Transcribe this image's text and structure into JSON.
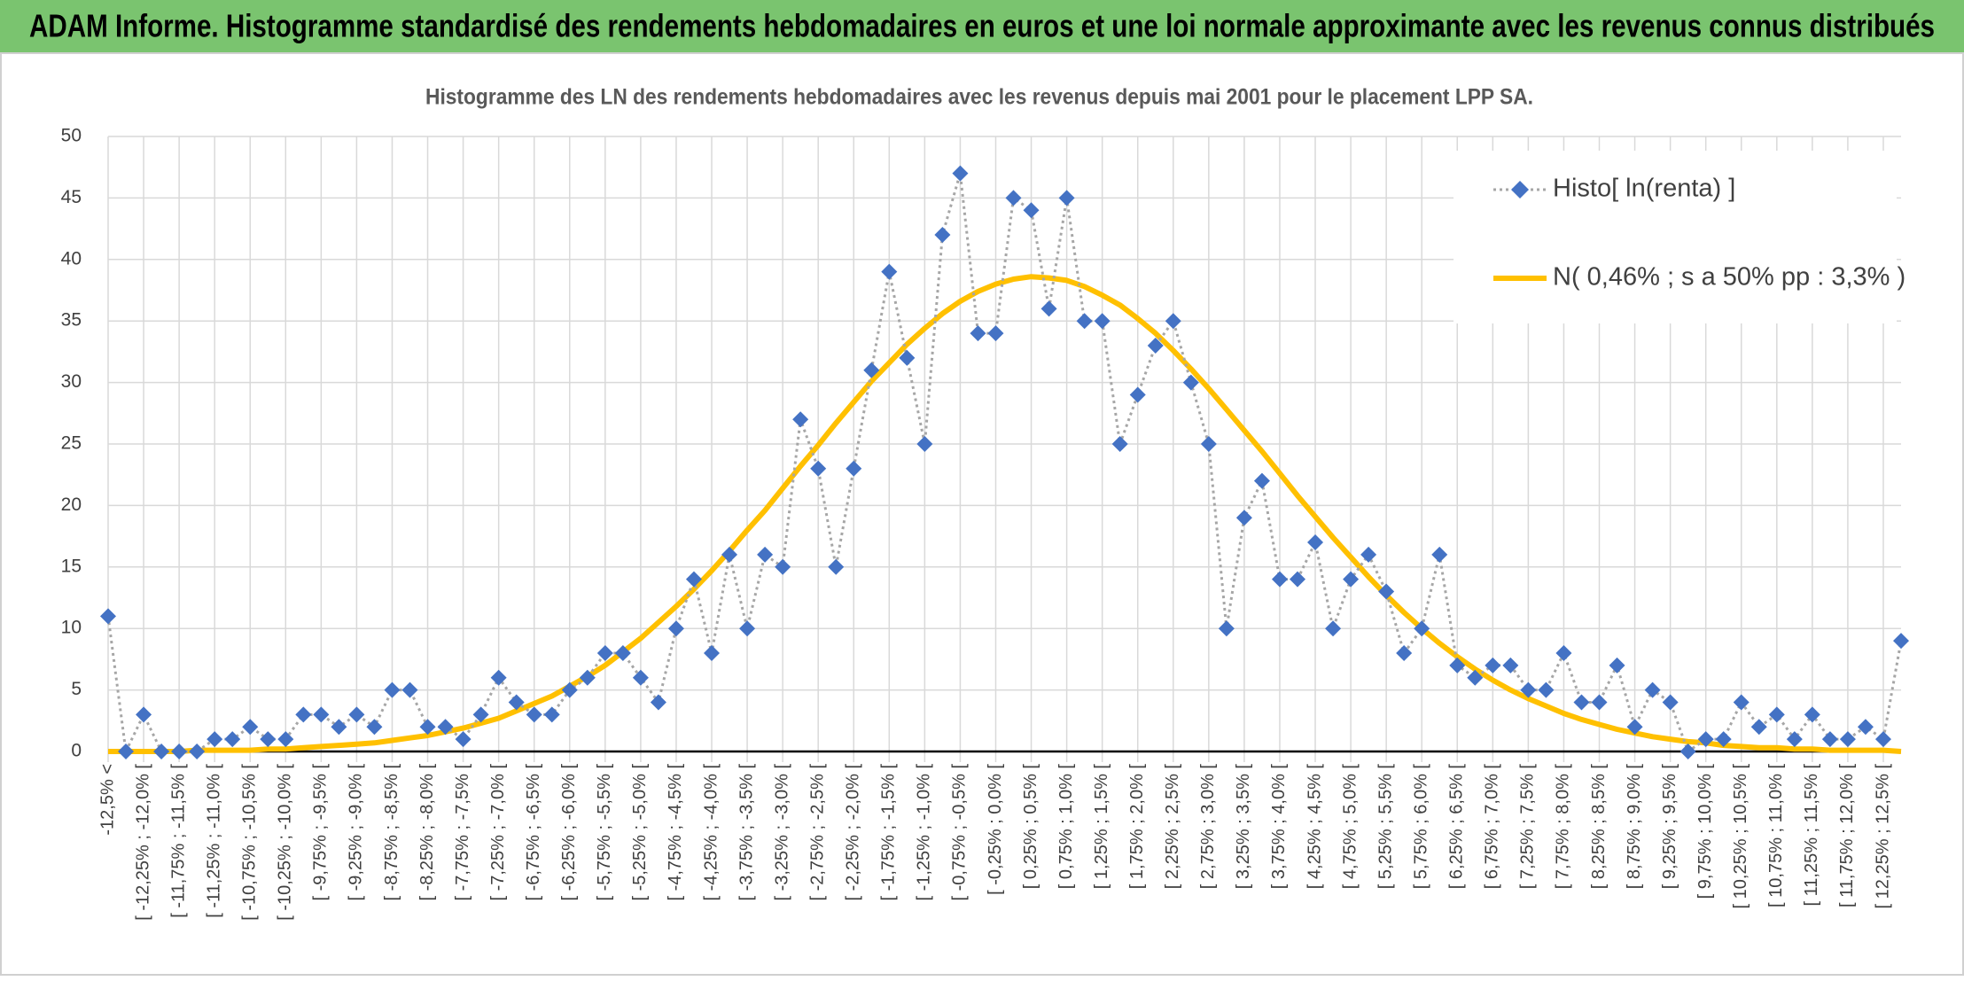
{
  "chart_data": {
    "type": "line",
    "title": "ADAM Informe. Histogramme standardisé des rendements hebdomadaires en euros et une loi normale approximante avec les revenus connus distribués",
    "subtitle": "Histogramme des LN des rendements hebdomadaires avec les revenus depuis mai 2001 pour le placement LPP SA.",
    "categories": [
      "-12,5% <",
      null,
      "[ -12,25% ; -12,0% [",
      null,
      "[ -11,75% ; -11,5% [",
      null,
      "[ -11,25% ; -11,0% [",
      null,
      "[ -10,75% ; -10,5% [",
      null,
      "[ -10,25% ; -10,0% [",
      null,
      "[ -9,75% ; -9,5% [",
      null,
      "[ -9,25% ; -9,0% [",
      null,
      "[ -8,75% ; -8,5% [",
      null,
      "[ -8,25% ; -8,0% [",
      null,
      "[ -7,75% ; -7,5% [",
      null,
      "[ -7,25% ; -7,0% [",
      null,
      "[ -6,75% ; -6,5% [",
      null,
      "[ -6,25% ; -6,0% [",
      null,
      "[ -5,75% ; -5,5% [",
      null,
      "[ -5,25% ; -5,0% [",
      null,
      "[ -4,75% ; -4,5% [",
      null,
      "[ -4,25% ; -4,0% [",
      null,
      "[ -3,75% ; -3,5% [",
      null,
      "[ -3,25% ; -3,0% [",
      null,
      "[ -2,75% ; -2,5% [",
      null,
      "[ -2,25% ; -2,0% [",
      null,
      "[ -1,75% ; -1,5% [",
      null,
      "[ -1,25% ; -1,0% [",
      null,
      "[ -0,75% ; -0,5% [",
      null,
      "[ -0,25% ; 0,0% [",
      null,
      "[ 0,25% ; 0,5% [",
      null,
      "[ 0,75% ; 1,0% [",
      null,
      "[ 1,25% ; 1,5% [",
      null,
      "[ 1,75% ; 2,0% [",
      null,
      "[ 2,25% ; 2,5% [",
      null,
      "[ 2,75% ; 3,0% [",
      null,
      "[ 3,25% ; 3,5% [",
      null,
      "[ 3,75% ; 4,0% [",
      null,
      "[ 4,25% ; 4,5% [",
      null,
      "[ 4,75% ; 5,0% [",
      null,
      "[ 5,25% ; 5,5% [",
      null,
      "[ 5,75% ; 6,0% [",
      null,
      "[ 6,25% ; 6,5% [",
      null,
      "[ 6,75% ; 7,0% [",
      null,
      "[ 7,25% ; 7,5% [",
      null,
      "[ 7,75% ; 8,0% [",
      null,
      "[ 8,25% ; 8,5% [",
      null,
      "[ 8,75% ; 9,0% [",
      null,
      "[ 9,25% ; 9,5% [",
      null,
      "[ 9,75% ; 10,0% [",
      null,
      "[ 10,25% ; 10,5% [",
      null,
      "[ 10,75% ; 11,0% [",
      null,
      "[ 11,25% ; 11,5% [",
      null,
      "[ 11,75% ; 12,0% [",
      null,
      "[ 12,25% ; 12,5% [",
      null
    ],
    "series": [
      {
        "name": "Histo[ ln(renta) ]",
        "color": "#4472c4",
        "marker": "diamond",
        "line_color": "#a6a6a6",
        "line_style": "dotted",
        "values": [
          11,
          0,
          3,
          0,
          0,
          0,
          1,
          1,
          2,
          1,
          1,
          3,
          3,
          2,
          3,
          2,
          5,
          5,
          2,
          2,
          1,
          3,
          6,
          4,
          3,
          3,
          5,
          6,
          8,
          8,
          6,
          4,
          10,
          14,
          8,
          16,
          10,
          16,
          15,
          27,
          23,
          15,
          23,
          31,
          39,
          32,
          25,
          42,
          47,
          34,
          34,
          45,
          44,
          36,
          45,
          35,
          35,
          25,
          29,
          33,
          35,
          30,
          25,
          10,
          19,
          22,
          14,
          14,
          17,
          10,
          14,
          16,
          13,
          8,
          10,
          16,
          7,
          6,
          7,
          7,
          5,
          5,
          8,
          4,
          4,
          7,
          2,
          5,
          4,
          0,
          1,
          1,
          4,
          2,
          3,
          1,
          3,
          1,
          1,
          2,
          1,
          9
        ]
      },
      {
        "name": "N( 0,46% ; s a 50% pp : 3,3% )",
        "color": "#ffc000",
        "line_style": "solid",
        "values": [
          0,
          0,
          0,
          0,
          0,
          0.1,
          0.1,
          0.1,
          0.1,
          0.2,
          0.2,
          0.3,
          0.4,
          0.5,
          0.6,
          0.7,
          0.9,
          1.1,
          1.3,
          1.6,
          1.9,
          2.3,
          2.7,
          3.3,
          3.9,
          4.5,
          5.3,
          6.1,
          7.0,
          8.1,
          9.2,
          10.5,
          11.8,
          13.2,
          14.7,
          16.3,
          18.0,
          19.6,
          21.4,
          23.2,
          24.9,
          26.7,
          28.4,
          30.1,
          31.6,
          33.1,
          34.4,
          35.6,
          36.6,
          37.4,
          38.0,
          38.4,
          38.6,
          38.5,
          38.3,
          37.8,
          37.1,
          36.3,
          35.2,
          34.0,
          32.6,
          31.1,
          29.5,
          27.8,
          26.1,
          24.4,
          22.6,
          20.8,
          19.1,
          17.4,
          15.8,
          14.2,
          12.7,
          11.3,
          10.0,
          8.8,
          7.7,
          6.7,
          5.8,
          5.0,
          4.3,
          3.7,
          3.1,
          2.6,
          2.2,
          1.8,
          1.5,
          1.2,
          1.0,
          0.8,
          0.7,
          0.5,
          0.4,
          0.3,
          0.3,
          0.2,
          0.2,
          0.1,
          0.1,
          0.1,
          0.1,
          0
        ]
      }
    ],
    "ylim": [
      0,
      50
    ],
    "yticks": [
      0,
      5,
      10,
      15,
      20,
      25,
      30,
      35,
      40,
      45,
      50
    ],
    "grid": true,
    "legend": "top-right"
  }
}
